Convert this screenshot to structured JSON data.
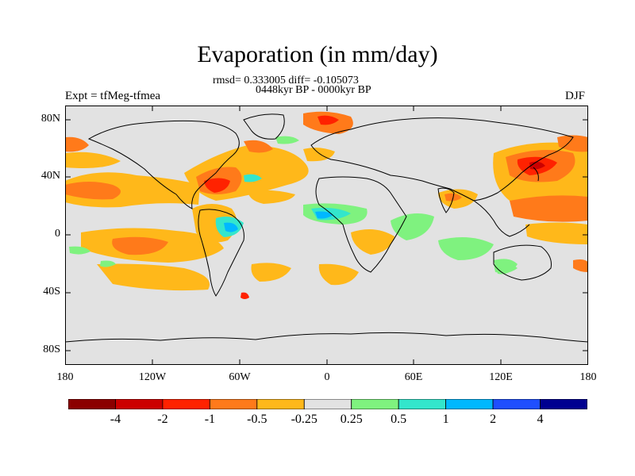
{
  "figure": {
    "title": "Evaporation (in mm/day)",
    "stats": "rmsd= 0.333005 diff= -0.105073",
    "period": "0448kyr BP - 0000kyr BP",
    "expt": "Expt = tfMeg-tfmea",
    "season": "DJF"
  },
  "axes": {
    "lat_ticks": [
      "80N",
      "40N",
      "0",
      "40S",
      "80S"
    ],
    "lon_ticks": [
      "180",
      "120W",
      "60W",
      "0",
      "60E",
      "120E",
      "180"
    ]
  },
  "colorbar": {
    "colors": [
      "#8b0000",
      "#cc0000",
      "#ff2200",
      "#ff7a1a",
      "#ffb81a",
      "#e2e2e2",
      "#7ff27f",
      "#33e6cc",
      "#00b8ff",
      "#1f4fff",
      "#000090"
    ],
    "labels": [
      "-4",
      "-2",
      "-1",
      "-0.5",
      "-0.25",
      "0.25",
      "0.5",
      "1",
      "2",
      "4"
    ]
  },
  "colors": {
    "background": "#e2e2e2",
    "coast": "#000000"
  }
}
